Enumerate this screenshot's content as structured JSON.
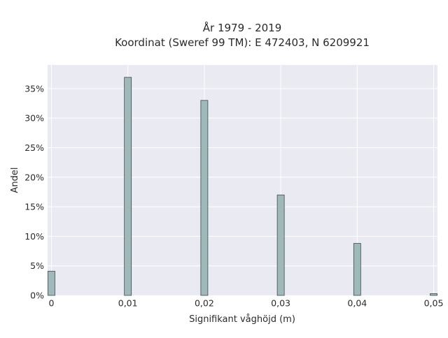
{
  "chart_data": {
    "type": "bar",
    "title": "År 1979 - 2019",
    "subtitle": "Koordinat (Sweref 99 TM): E 472403, N 6209921",
    "xlabel": "Signifikant våghöjd (m)",
    "ylabel": "Andel",
    "x": [
      0,
      0.01,
      0.02,
      0.03,
      0.04,
      0.05
    ],
    "x_tick_labels": [
      "0",
      "0,01",
      "0,02",
      "0,03",
      "0,04",
      "0,05"
    ],
    "values": [
      4.1,
      36.9,
      33.0,
      17.0,
      8.8,
      0.3
    ],
    "y_tick_values": [
      0,
      5,
      10,
      15,
      20,
      25,
      30,
      35
    ],
    "y_tick_labels": [
      "0%",
      "5%",
      "10%",
      "15%",
      "20%",
      "25%",
      "30%",
      "35%"
    ],
    "xlim": [
      -0.0005,
      0.0505
    ],
    "ylim": [
      0,
      39
    ],
    "grid": true,
    "legend": "none",
    "bar_color": "#9fb9ba",
    "bar_edge_color": "#3e4a4b",
    "plot_background": "#eaeaf2",
    "grid_color": "#ffffff"
  }
}
